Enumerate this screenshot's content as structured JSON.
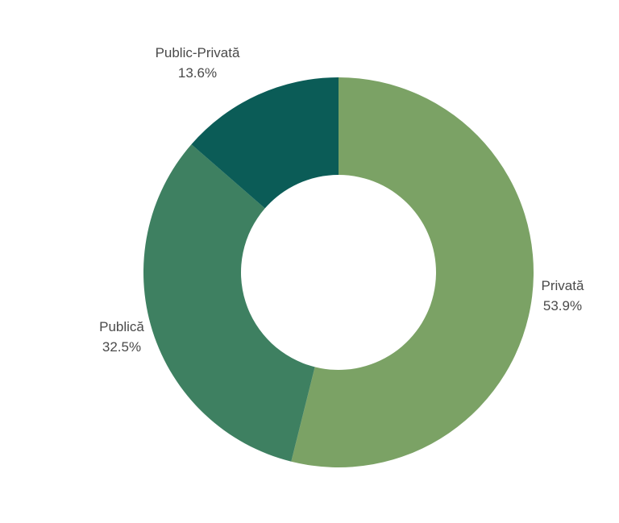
{
  "chart_data": {
    "type": "pie",
    "style": "donut",
    "title": "",
    "slices": [
      {
        "label": "Privată",
        "value": 53.9,
        "value_text": "53.9%",
        "color": "#7ba265"
      },
      {
        "label": "Publică",
        "value": 32.5,
        "value_text": "32.5%",
        "color": "#3e8061"
      },
      {
        "label": "Public-Privată",
        "value": 13.6,
        "value_text": "13.6%",
        "color": "#0b5c57"
      }
    ],
    "start_angle": "12 o'clock",
    "direction": "clockwise",
    "legend": "none",
    "labels_position": "outside"
  }
}
